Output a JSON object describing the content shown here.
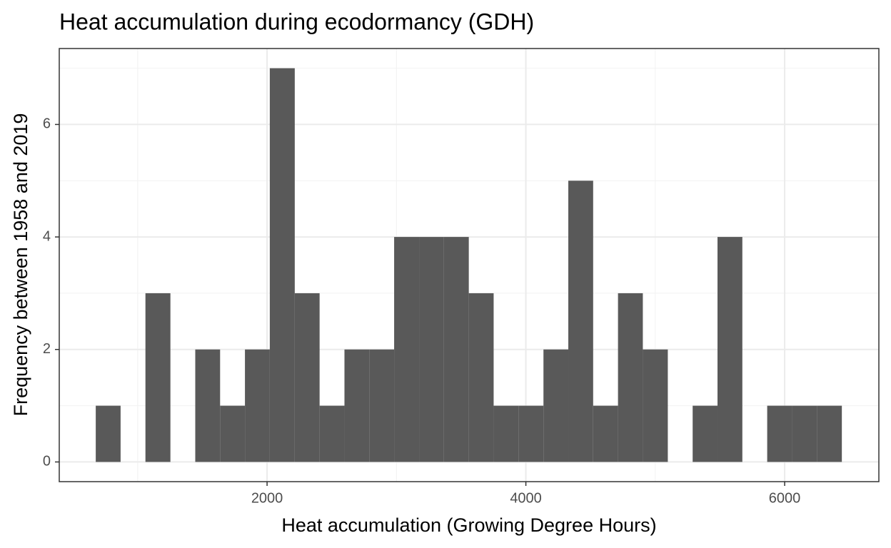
{
  "chart_data": {
    "type": "histogram",
    "title": "Heat accumulation during ecodormancy (GDH)",
    "x_label": "Heat accumulation (Growing Degree Hours)",
    "y_label": "Frequency between 1958 and 2019",
    "bins": [
      676,
      868,
      1060,
      1253,
      1445,
      1637,
      1829,
      2021,
      2214,
      2406,
      2598,
      2790,
      2982,
      3175,
      3367,
      3559,
      3751,
      3943,
      4136,
      4328,
      4520,
      4712,
      4904,
      5097,
      5289,
      5481,
      5673,
      5865,
      6058,
      6250,
      6442
    ],
    "values": [
      1,
      0,
      3,
      0,
      2,
      1,
      2,
      7,
      3,
      1,
      2,
      2,
      4,
      4,
      4,
      3,
      1,
      1,
      2,
      5,
      1,
      3,
      2,
      0,
      1,
      4,
      0,
      1,
      1,
      1
    ],
    "color": "#595959",
    "xlim": [
      394,
      6728
    ],
    "xticks": [
      2000,
      4000,
      6000
    ],
    "xminor": [
      1000,
      3000,
      5000
    ],
    "ylim": [
      -0.35,
      7.35
    ],
    "yticks": [
      0,
      2,
      4,
      6
    ],
    "yminor": [
      1,
      3,
      5,
      7
    ],
    "grid": true
  }
}
